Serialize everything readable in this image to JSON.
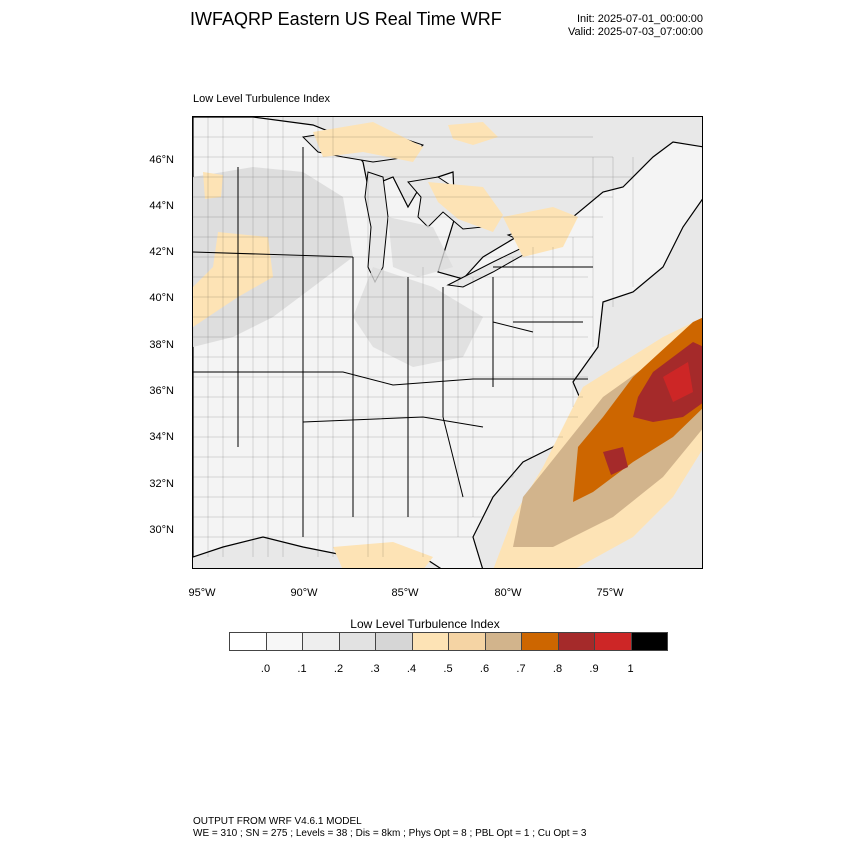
{
  "header": {
    "title": "IWFAQRP Eastern US Real Time WRF",
    "init": "Init: 2025-07-01_00:00:00",
    "valid": "Valid: 2025-07-03_07:00:00"
  },
  "map": {
    "field_label": "Low Level Turbulence Index",
    "lat_labels": [
      "46°N",
      "44°N",
      "42°N",
      "40°N",
      "38°N",
      "36°N",
      "34°N",
      "32°N",
      "30°N"
    ],
    "lon_labels": [
      "95°W",
      "90°W",
      "85°W",
      "80°W",
      "75°W"
    ],
    "colors": {
      "land_low": "#f4f4f4",
      "land_mid": "#dcdcdc",
      "water": "#e8e8e8",
      "light_orange": "#fde3b5",
      "tan": "#d2b48c",
      "orange": "#cd6600",
      "dark_red": "#a52a2a",
      "red": "#cd2626"
    }
  },
  "colorbar": {
    "title": "Low Level Turbulence Index",
    "bins": [
      "#ffffff",
      "#f7f7f7",
      "#eeeeee",
      "#e2e2e2",
      "#d6d6d6",
      "#fde3b5",
      "#f5d4a4",
      "#d2b48c",
      "#cd6600",
      "#a52a2a",
      "#cd2626",
      "#000000"
    ],
    "labels": [
      ".0",
      ".1",
      ".2",
      ".3",
      ".4",
      ".5",
      ".6",
      ".7",
      ".8",
      ".9",
      "1"
    ]
  },
  "footer": {
    "line1": "OUTPUT FROM WRF V4.6.1 MODEL",
    "line2": "WE = 310 ; SN = 275 ; Levels = 38 ; Dis = 8km ; Phys Opt = 8 ; PBL Opt = 1 ; Cu Opt = 3"
  }
}
